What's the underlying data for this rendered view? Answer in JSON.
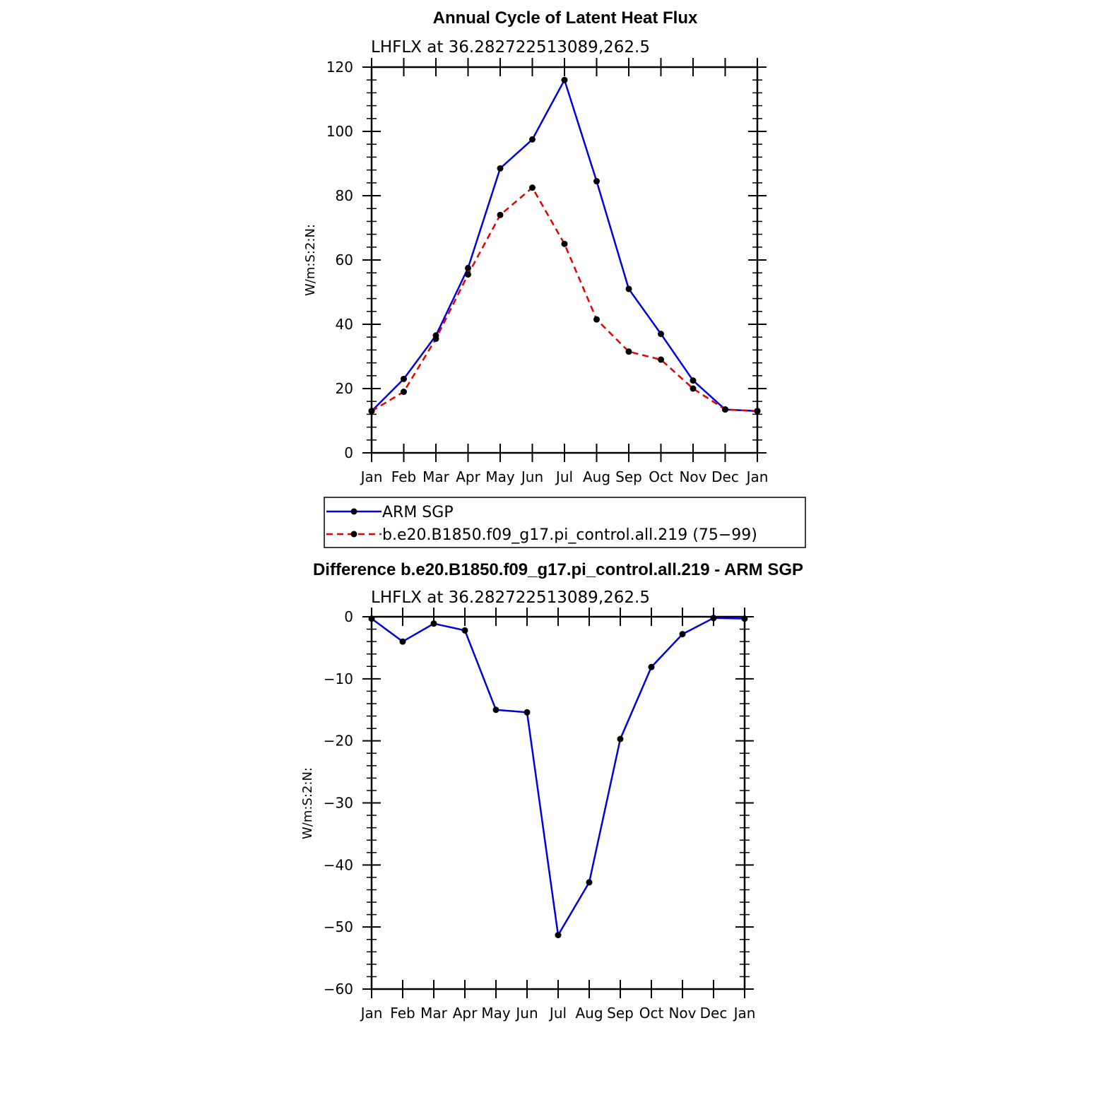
{
  "chart_data": [
    {
      "type": "line",
      "title": "Annual Cycle of Latent Heat Flux",
      "subtitle": "LHFLX at 36.282722513089,262.5",
      "ylabel": "W/m:S:2:N:",
      "xlabel": "",
      "categories": [
        "Jan",
        "Feb",
        "Mar",
        "Apr",
        "May",
        "Jun",
        "Jul",
        "Aug",
        "Sep",
        "Oct",
        "Nov",
        "Dec",
        "Jan"
      ],
      "ylim": [
        0,
        120
      ],
      "yticks": [
        "0",
        "20",
        "40",
        "60",
        "80",
        "100",
        "120"
      ],
      "series": [
        {
          "name": "ARM SGP",
          "color": "#0000dd",
          "dash": "solid",
          "values": [
            13.0,
            23.0,
            36.5,
            57.5,
            88.5,
            97.5,
            116.0,
            84.5,
            51.0,
            37.0,
            22.5,
            13.5,
            13.0
          ]
        },
        {
          "name": "b.e20.B1850.f09_g17.pi_control.all.219 (75−99)",
          "color": "#e60000",
          "dash": "dashed",
          "values": [
            13.0,
            19.0,
            35.5,
            55.5,
            74.0,
            82.5,
            65.0,
            41.5,
            31.5,
            29.0,
            20.0,
            13.5,
            13.0
          ]
        }
      ],
      "legend": "below"
    },
    {
      "type": "line",
      "title": "Difference b.e20.B1850.f09_g17.pi_control.all.219 - ARM SGP",
      "subtitle": "LHFLX at 36.282722513089,262.5",
      "ylabel": "W/m:S:2:N:",
      "xlabel": "",
      "categories": [
        "Jan",
        "Feb",
        "Mar",
        "Apr",
        "May",
        "Jun",
        "Jul",
        "Aug",
        "Sep",
        "Oct",
        "Nov",
        "Dec",
        "Jan"
      ],
      "ylim": [
        -60,
        0
      ],
      "yticks": [
        "−60",
        "−50",
        "−40",
        "−30",
        "−20",
        "−10",
        "0"
      ],
      "series": [
        {
          "color": "#0000dd",
          "dash": "solid",
          "values": [
            -0.3,
            -4.0,
            -1.1,
            -2.2,
            -15.0,
            -15.4,
            -51.3,
            -42.8,
            -19.7,
            -8.1,
            -2.8,
            -0.2,
            -0.3
          ]
        }
      ]
    }
  ]
}
